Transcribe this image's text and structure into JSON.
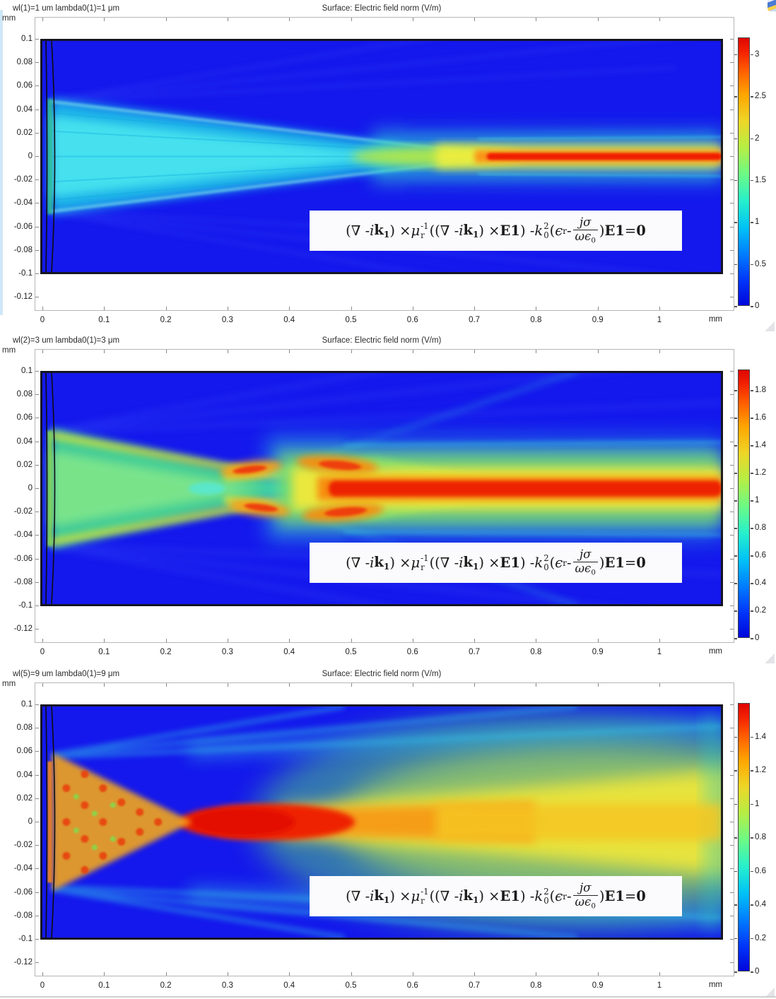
{
  "equation_html": "(∇ - <i>i</i><b>k<span class=\"sb\">1</span></b>) × <i>μ</i><span class=\"ss\"><span>-1</span><span>r</span></span>((∇ - <i>i</i><b>k<span class=\"sb\">1</span></b>) × <b>E1</b>) - <i>k</i><span class=\"ss\"><span>2</span><span>0</span></span>(<i>ϵ</i><span class=\"sb\">r</span> - <span class=\"frac\"><span class=\"nm\"><i>jσ</i></span><span class=\"dn\"><i>ωϵ</i><span class=\"sb\">0</span></span></span>)<b>E1</b> = <b>0</b>",
  "chart_data": [
    {
      "type": "heatmap",
      "title_left": "wl(1)=1 um lambda0(1)=1 μm",
      "title_center": "Surface: Electric field norm (V/m)",
      "x_unit": "mm",
      "y_unit": "mm",
      "x_ticks": [
        0,
        0.1,
        0.2,
        0.3,
        0.4,
        0.5,
        0.6,
        0.7,
        0.8,
        0.9,
        1
      ],
      "y_ticks": [
        0.1,
        0.08,
        0.06,
        0.04,
        0.02,
        0,
        -0.02,
        -0.04,
        -0.06,
        -0.08,
        -0.1,
        -0.12
      ],
      "x_range_mm": [
        0,
        1.1
      ],
      "y_range_mm": [
        -0.1,
        0.1
      ],
      "colorbar": {
        "min": 0,
        "max": 3.2,
        "ticks": [
          3,
          2.5,
          2,
          1.5,
          1,
          0.5,
          0
        ]
      },
      "field_summary": {
        "wavelength_um": 1,
        "aperture_halfwidth_mm": 0.05,
        "focal_line_start_x_mm": 0.7,
        "peak_field_norm_Vm": 3.2,
        "description": "Cyan diffraction cone (|E|≈1) spreads from the lens aperture, interference fan crosses near x≈0.2 mm, then converges into a very thin intense red focal line (|E|≈3) along y=0 from x≈0.7 mm to the right edge."
      }
    },
    {
      "type": "heatmap",
      "title_left": "wl(2)=3 um lambda0(1)=3 μm",
      "title_center": "Surface: Electric field norm (V/m)",
      "x_unit": "mm",
      "y_unit": "mm",
      "x_ticks": [
        0,
        0.1,
        0.2,
        0.3,
        0.4,
        0.5,
        0.6,
        0.7,
        0.8,
        0.9,
        1
      ],
      "y_ticks": [
        0.1,
        0.08,
        0.06,
        0.04,
        0.02,
        0,
        -0.02,
        -0.04,
        -0.06,
        -0.08,
        -0.1,
        -0.12
      ],
      "x_range_mm": [
        0,
        1.1
      ],
      "y_range_mm": [
        -0.1,
        0.1
      ],
      "colorbar": {
        "min": 0,
        "max": 1.95,
        "ticks": [
          1.8,
          1.6,
          1.4,
          1.2,
          1,
          0.8,
          0.6,
          0.4,
          0.2,
          0
        ]
      },
      "field_summary": {
        "wavelength_um": 3,
        "aperture_halfwidth_mm": 0.05,
        "focal_line_start_x_mm": 0.45,
        "peak_field_norm_Vm": 1.95,
        "description": "Green diffraction fan with yellow edge lobes; orange/red interference lobes around x≈0.25–0.45 mm above and below the axis; thick red focal beam (|E|≈1.9) along y=0 from x≈0.45 mm to the right edge with green and cyan side wings."
      }
    },
    {
      "type": "heatmap",
      "title_left": "wl(5)=9 um lambda0(1)=9 μm",
      "title_center": "Surface: Electric field norm (V/m)",
      "x_unit": "mm",
      "y_unit": "mm",
      "x_ticks": [
        0,
        0.1,
        0.2,
        0.3,
        0.4,
        0.5,
        0.6,
        0.7,
        0.8,
        0.9,
        1
      ],
      "y_ticks": [
        0.1,
        0.08,
        0.06,
        0.04,
        0.02,
        0,
        -0.02,
        -0.04,
        -0.06,
        -0.08,
        -0.1,
        -0.12
      ],
      "x_range_mm": [
        0,
        1.1
      ],
      "y_range_mm": [
        -0.1,
        0.1
      ],
      "colorbar": {
        "min": 0,
        "max": 1.6,
        "ticks": [
          1.4,
          1.2,
          1,
          0.8,
          0.6,
          0.4,
          0.2,
          0
        ]
      },
      "field_summary": {
        "wavelength_um": 9,
        "aperture_halfwidth_mm": 0.05,
        "focal_spot_x_mm": 0.3,
        "peak_field_norm_Vm": 1.6,
        "description": "Speckled orange near-field triangle behind the lens; broad red focal spot (|E|≈1.5) centered near x≈0.3 mm on the axis, relaxing into a wide yellow-green beam that fills the right half, with cyan diffraction rays above and below."
      }
    }
  ]
}
